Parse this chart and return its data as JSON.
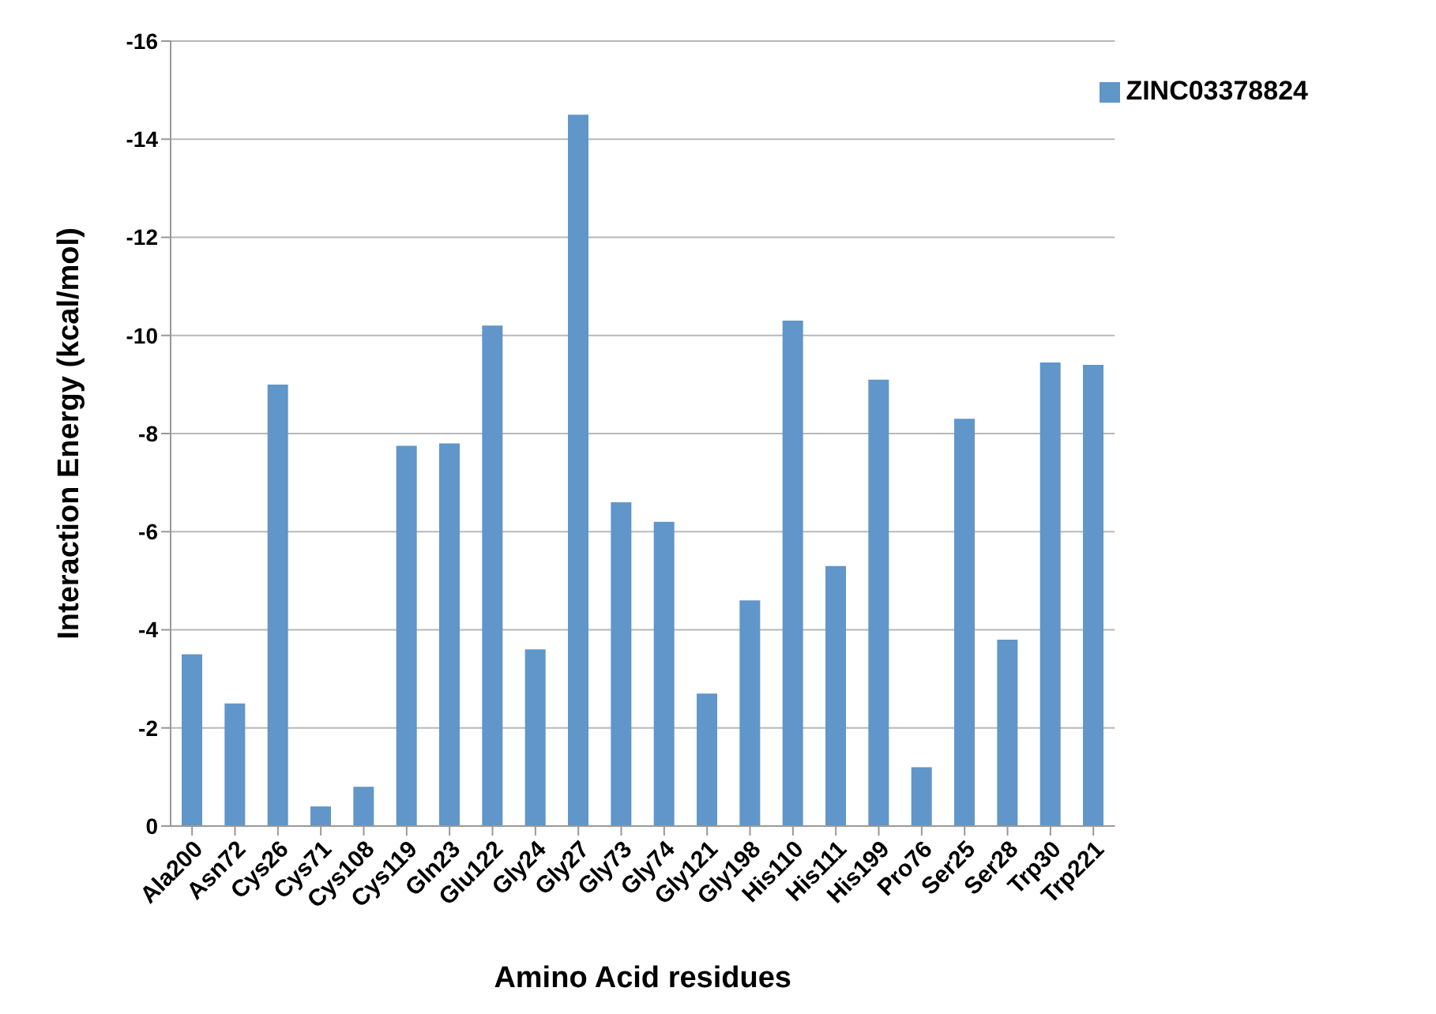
{
  "chart_data": {
    "type": "bar",
    "xlabel": "Amino Acid residues",
    "ylabel": "Interaction Energy (kcal/mol)",
    "categories": [
      "Ala200",
      "Asn72",
      "Cys26",
      "Cys71",
      "Cys108",
      "Cys119",
      "Gln23",
      "Glu122",
      "Gly24",
      "Gly27",
      "Gly73",
      "Gly74",
      "Gly121",
      "Gly198",
      "His110",
      "His111",
      "His199",
      "Pro76",
      "Ser25",
      "Ser28",
      "Trp30",
      "Trp221"
    ],
    "series": [
      {
        "name": "ZINC03378824",
        "color": "#6096c9",
        "values": [
          -3.5,
          -2.5,
          -9.0,
          -0.4,
          -0.8,
          -7.75,
          -7.8,
          -10.2,
          -3.6,
          -14.5,
          -6.6,
          -6.2,
          -2.7,
          -4.6,
          -10.3,
          -5.3,
          -9.1,
          -1.2,
          -8.3,
          -3.8,
          -9.45,
          -9.4
        ]
      }
    ],
    "ylim": [
      0,
      -16
    ],
    "yticks": [
      0,
      -2,
      -4,
      -6,
      -8,
      -10,
      -12,
      -14,
      -16
    ],
    "grid": "y",
    "legend": "top right"
  }
}
